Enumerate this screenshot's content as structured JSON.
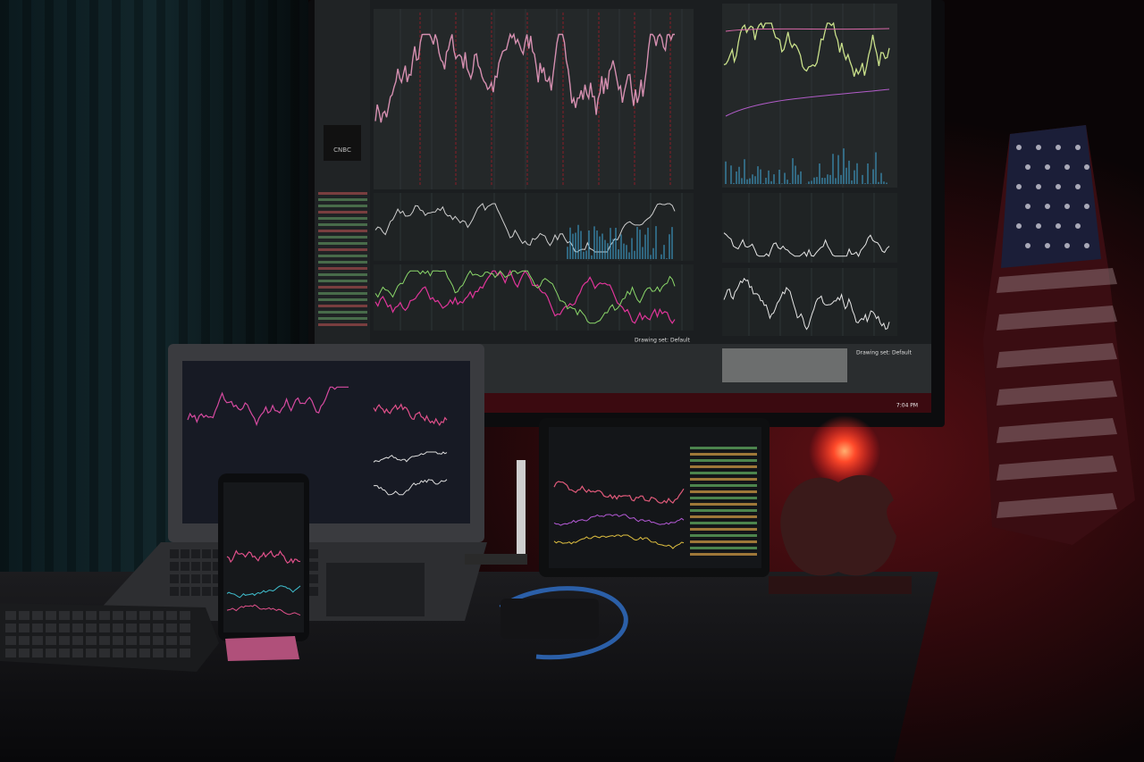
{
  "monitor": {
    "logo": "CNBC",
    "status_left": "Drawing set: Default",
    "status_right": "Drawing set: Default",
    "clock": "7:04 PM"
  }
}
